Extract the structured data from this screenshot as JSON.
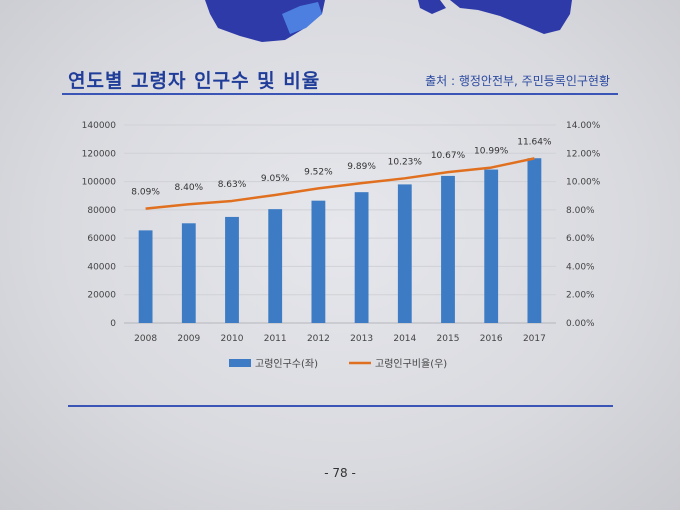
{
  "header": {
    "title": "연도별 고령자 인구수 및 비율",
    "source": "출처 : 행정안전부, 주민등록인구현황"
  },
  "footer": {
    "page_number": "- 78 -"
  },
  "chart_data": {
    "type": "bar",
    "categories": [
      "2008",
      "2009",
      "2010",
      "2011",
      "2012",
      "2013",
      "2014",
      "2015",
      "2016",
      "2017"
    ],
    "series": [
      {
        "name": "고령인구수(좌)",
        "type": "bar",
        "axis": "left",
        "values": [
          65500,
          70500,
          75000,
          80500,
          86500,
          92500,
          98000,
          104000,
          108500,
          116500
        ]
      },
      {
        "name": "고령인구비율(우)",
        "type": "line",
        "axis": "right",
        "values": [
          8.09,
          8.4,
          8.63,
          9.05,
          9.52,
          9.89,
          10.23,
          10.67,
          10.99,
          11.64
        ],
        "labels": [
          "8.09%",
          "8.40%",
          "8.63%",
          "9.05%",
          "9.52%",
          "9.89%",
          "10.23%",
          "10.67%",
          "10.99%",
          "11.64%"
        ]
      }
    ],
    "y_left": {
      "min": 0,
      "max": 140000,
      "ticks": [
        "0",
        "20000",
        "40000",
        "60000",
        "80000",
        "100000",
        "120000",
        "140000"
      ]
    },
    "y_right": {
      "min": 0,
      "max": 14,
      "ticks": [
        "0.00%",
        "2.00%",
        "4.00%",
        "6.00%",
        "8.00%",
        "10.00%",
        "12.00%",
        "14.00%"
      ]
    },
    "grid": true,
    "legend_position": "bottom",
    "colors": {
      "bar": "#3d7cc4",
      "line": "#e0701f"
    }
  }
}
